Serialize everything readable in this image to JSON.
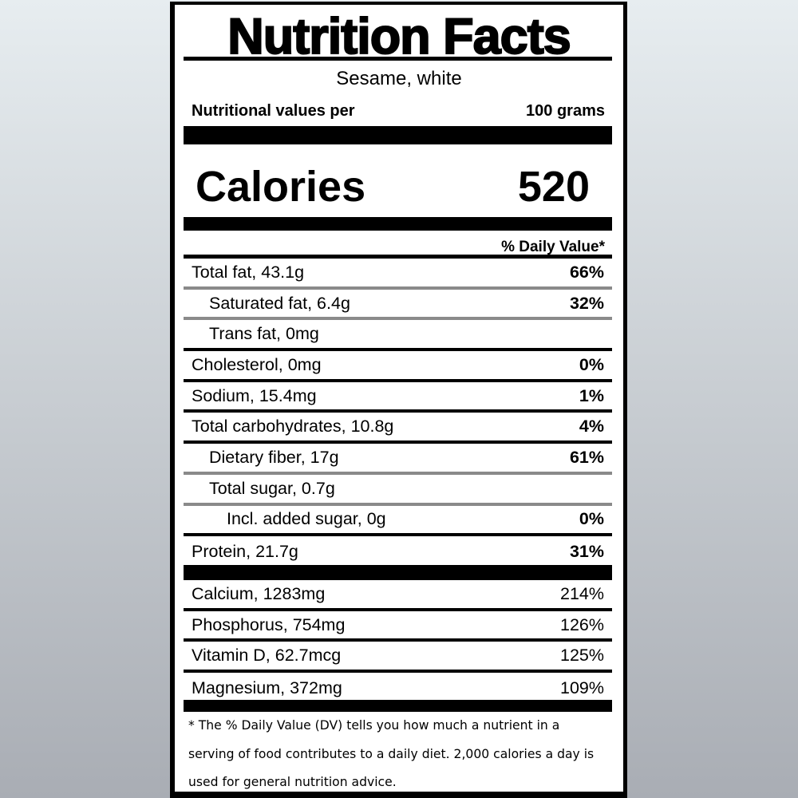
{
  "title": "Nutrition Facts",
  "food_name": "Sesame, white",
  "serving": {
    "label": "Nutritional values per",
    "amount": "100 grams"
  },
  "calories": {
    "label": "Calories",
    "value": "520"
  },
  "daily_value_header": "% Daily Value*",
  "nutrients": [
    {
      "label": "Total fat, 43.1g",
      "dv": "66%",
      "indent": 0,
      "divider": "gray"
    },
    {
      "label": "Saturated fat, 6.4g",
      "dv": "32%",
      "indent": 1,
      "divider": "gray"
    },
    {
      "label": "Trans fat, 0mg",
      "dv": "",
      "indent": 1,
      "divider": "black"
    },
    {
      "label": "Cholesterol, 0mg",
      "dv": "0%",
      "indent": 0,
      "divider": "black"
    },
    {
      "label": "Sodium, 15.4mg",
      "dv": "1%",
      "indent": 0,
      "divider": "black"
    },
    {
      "label": "Total carbohydrates, 10.8g",
      "dv": "4%",
      "indent": 0,
      "divider": "black"
    },
    {
      "label": "Dietary fiber, 17g",
      "dv": "61%",
      "indent": 1,
      "divider": "gray"
    },
    {
      "label": "Total sugar, 0.7g",
      "dv": "",
      "indent": 1,
      "divider": "gray"
    },
    {
      "label": "Incl. added sugar, 0g",
      "dv": "0%",
      "indent": 2,
      "divider": "black"
    },
    {
      "label": "Protein, 21.7g",
      "dv": "31%",
      "indent": 0,
      "divider": "none"
    }
  ],
  "minerals": [
    {
      "label": "Calcium, 1283mg",
      "dv": "214%"
    },
    {
      "label": "Phosphorus, 754mg",
      "dv": "126%"
    },
    {
      "label": "Vitamin D, 62.7mcg",
      "dv": "125%"
    },
    {
      "label": "Magnesium, 372mg",
      "dv": "109%"
    }
  ],
  "footnote": "* The % Daily Value (DV) tells you how much a nutrient in a serving of food contributes to a daily diet. 2,000 calories a day is used for general nutrition advice.",
  "colors": {
    "rule": "#000000",
    "light_rule": "#8a8a8a"
  }
}
